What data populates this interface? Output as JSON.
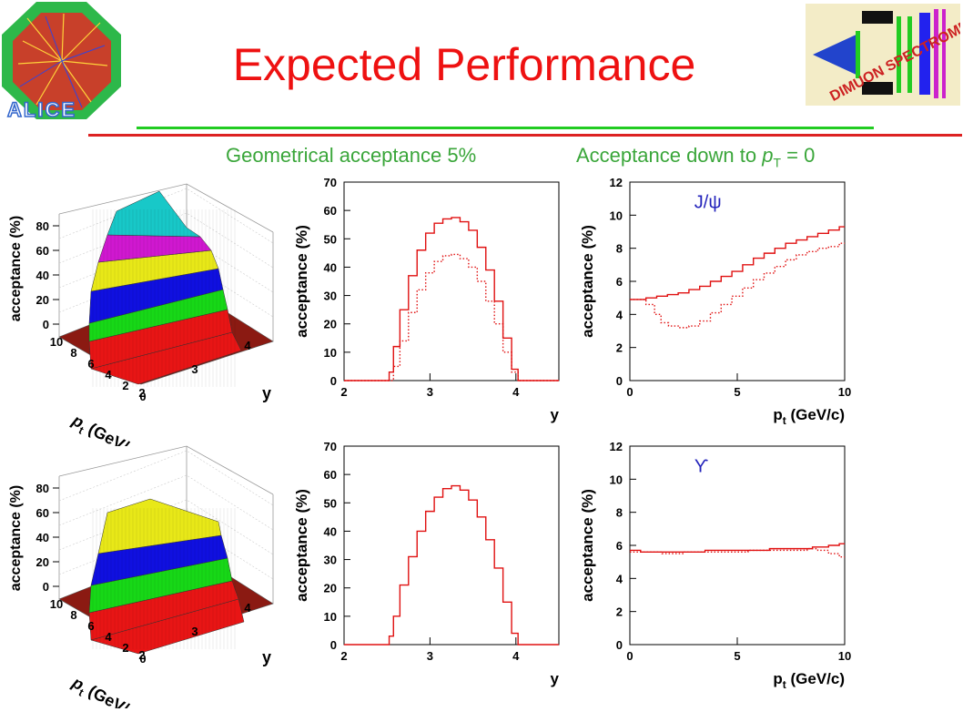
{
  "title": "Expected Performance",
  "subtitles": {
    "left": "Geometrical acceptance 5%",
    "right_prefix": "Acceptance down to ",
    "right_var": "p",
    "right_sub": "T",
    "right_suffix": " = 0"
  },
  "logos": {
    "left_text": "ALICE",
    "right_text": "DIMUON SPECTROMETER"
  },
  "colors": {
    "title": "#ee1111",
    "subtitle": "#3aa63a",
    "curve": "#e01010",
    "lego": [
      "#e81515",
      "#17d817",
      "#1010e0",
      "#e8e818",
      "#d018d0",
      "#18c8c8"
    ]
  },
  "lego": [
    {
      "zlabel": "acceptance (%)",
      "zticks": [
        "0",
        "20",
        "40",
        "60",
        "80"
      ],
      "ptlabel": "p",
      "ptsub": "t",
      "ptunit": " (GeV/c)",
      "ptticks": [
        "10",
        "8",
        "6",
        "4",
        "2",
        "0"
      ],
      "ylabel": "y",
      "yticks": [
        "2",
        "3",
        "4"
      ]
    },
    {
      "zlabel": "acceptance (%)",
      "zticks": [
        "0",
        "20",
        "40",
        "60",
        "80"
      ],
      "ptlabel": "p",
      "ptsub": "t",
      "ptunit": " (GeV/c)",
      "ptticks": [
        "10",
        "8",
        "6",
        "4",
        "2",
        "0"
      ],
      "ylabel": "y",
      "yticks": [
        "2",
        "3",
        "4"
      ]
    }
  ],
  "chart_data": [
    {
      "type": "line",
      "ylabel": "acceptance (%)",
      "xlabel": "y",
      "xlim": [
        2,
        4.5
      ],
      "ylim": [
        0,
        70
      ],
      "xticks": [
        "2",
        "3",
        "4"
      ],
      "yticks": [
        "0",
        "10",
        "20",
        "30",
        "40",
        "50",
        "60",
        "70"
      ],
      "series": [
        {
          "style": "solid",
          "x": [
            2.0,
            2.5,
            2.55,
            2.6,
            2.7,
            2.8,
            2.9,
            3.0,
            3.1,
            3.2,
            3.3,
            3.4,
            3.5,
            3.6,
            3.7,
            3.8,
            3.9,
            4.0,
            4.05,
            4.1,
            4.5
          ],
          "y": [
            0,
            0,
            3,
            12,
            25,
            37,
            46,
            52,
            55.5,
            57,
            57.5,
            56,
            53,
            47,
            39,
            28,
            15,
            4,
            0,
            0,
            0
          ]
        },
        {
          "style": "dotted",
          "x": [
            2.0,
            2.55,
            2.6,
            2.7,
            2.8,
            2.9,
            3.0,
            3.1,
            3.2,
            3.3,
            3.4,
            3.5,
            3.6,
            3.7,
            3.8,
            3.9,
            4.0,
            4.05,
            4.5
          ],
          "y": [
            0,
            0,
            5,
            14,
            24,
            32,
            38,
            42,
            44,
            44.5,
            43,
            40,
            35,
            28,
            20,
            10,
            3,
            0,
            0
          ]
        }
      ]
    },
    {
      "type": "line",
      "ylabel": "acceptance (%)",
      "xlabel": "p_t (GeV/c)",
      "xlim": [
        0,
        10
      ],
      "ylim": [
        0,
        12
      ],
      "xticks": [
        "0",
        "5",
        "10"
      ],
      "yticks": [
        "0",
        "2",
        "4",
        "6",
        "8",
        "10",
        "12"
      ],
      "annotation": "J/ψ",
      "series": [
        {
          "style": "solid",
          "x": [
            0,
            0.5,
            1,
            1.5,
            2,
            2.5,
            3,
            3.5,
            4,
            4.5,
            5,
            5.5,
            6,
            6.5,
            7,
            7.5,
            8,
            8.5,
            9,
            9.5,
            10
          ],
          "y": [
            4.9,
            4.9,
            5.0,
            5.1,
            5.2,
            5.3,
            5.5,
            5.7,
            6.0,
            6.3,
            6.6,
            7.0,
            7.4,
            7.7,
            8.0,
            8.3,
            8.5,
            8.7,
            8.9,
            9.1,
            9.3
          ]
        },
        {
          "style": "dotted",
          "x": [
            0,
            0.5,
            1,
            1.3,
            1.6,
            2,
            2.5,
            3,
            3.5,
            4,
            4.5,
            5,
            5.5,
            6,
            6.5,
            7,
            7.5,
            8,
            8.5,
            9,
            9.5,
            10
          ],
          "y": [
            4.9,
            4.9,
            4.6,
            4.0,
            3.5,
            3.3,
            3.2,
            3.3,
            3.6,
            4.1,
            4.6,
            5.1,
            5.6,
            6.1,
            6.5,
            6.9,
            7.3,
            7.6,
            7.8,
            8.0,
            8.1,
            8.3
          ]
        }
      ]
    },
    {
      "type": "line",
      "ylabel": "acceptance (%)",
      "xlabel": "y",
      "xlim": [
        2,
        4.5
      ],
      "ylim": [
        0,
        70
      ],
      "xticks": [
        "2",
        "3",
        "4"
      ],
      "yticks": [
        "0",
        "10",
        "20",
        "30",
        "40",
        "50",
        "60",
        "70"
      ],
      "series": [
        {
          "style": "solid",
          "x": [
            2.0,
            2.5,
            2.55,
            2.6,
            2.7,
            2.8,
            2.9,
            3.0,
            3.1,
            3.2,
            3.3,
            3.4,
            3.5,
            3.6,
            3.7,
            3.8,
            3.9,
            4.0,
            4.05,
            4.1,
            4.5
          ],
          "y": [
            0,
            0,
            3,
            10,
            21,
            31,
            40,
            47,
            52,
            55,
            56,
            54.5,
            51,
            45,
            37,
            27,
            15,
            4,
            0,
            0,
            0
          ]
        }
      ]
    },
    {
      "type": "line",
      "ylabel": "acceptance (%)",
      "xlabel": "p_t (GeV/c)",
      "xlim": [
        0,
        10
      ],
      "ylim": [
        0,
        12
      ],
      "xticks": [
        "0",
        "5",
        "10"
      ],
      "yticks": [
        "0",
        "2",
        "4",
        "6",
        "8",
        "10",
        "12"
      ],
      "annotation": "ϒ",
      "series": [
        {
          "style": "solid",
          "x": [
            0,
            1,
            2,
            3,
            4,
            5,
            6,
            7,
            8,
            9,
            9.5,
            10
          ],
          "y": [
            5.7,
            5.6,
            5.6,
            5.6,
            5.7,
            5.7,
            5.7,
            5.8,
            5.8,
            5.9,
            6.0,
            6.1
          ]
        },
        {
          "style": "dotted",
          "x": [
            0,
            1,
            2,
            3,
            4,
            5,
            6,
            7,
            8,
            8.5,
            9,
            9.5,
            10
          ],
          "y": [
            5.6,
            5.6,
            5.5,
            5.6,
            5.6,
            5.6,
            5.7,
            5.7,
            5.7,
            5.8,
            5.7,
            5.5,
            5.3
          ]
        }
      ]
    }
  ]
}
